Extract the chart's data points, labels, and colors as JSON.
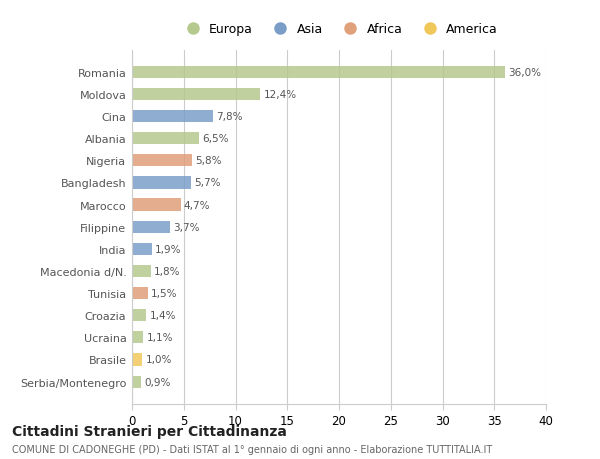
{
  "countries": [
    "Romania",
    "Moldova",
    "Cina",
    "Albania",
    "Nigeria",
    "Bangladesh",
    "Marocco",
    "Filippine",
    "India",
    "Macedonia d/N.",
    "Tunisia",
    "Croazia",
    "Ucraina",
    "Brasile",
    "Serbia/Montenegro"
  ],
  "values": [
    36.0,
    12.4,
    7.8,
    6.5,
    5.8,
    5.7,
    4.7,
    3.7,
    1.9,
    1.8,
    1.5,
    1.4,
    1.1,
    1.0,
    0.9
  ],
  "labels": [
    "36,0%",
    "12,4%",
    "7,8%",
    "6,5%",
    "5,8%",
    "5,7%",
    "4,7%",
    "3,7%",
    "1,9%",
    "1,8%",
    "1,5%",
    "1,4%",
    "1,1%",
    "1,0%",
    "0,9%"
  ],
  "continents": [
    "Europa",
    "Europa",
    "Asia",
    "Europa",
    "Africa",
    "Asia",
    "Africa",
    "Asia",
    "Asia",
    "Europa",
    "Africa",
    "Europa",
    "Europa",
    "America",
    "Europa"
  ],
  "colors": {
    "Europa": "#b5c98e",
    "Asia": "#7b9ec9",
    "Africa": "#e0a07a",
    "America": "#f0c85a"
  },
  "legend_order": [
    "Europa",
    "Asia",
    "Africa",
    "America"
  ],
  "title": "Cittadini Stranieri per Cittadinanza",
  "subtitle": "COMUNE DI CADONEGHE (PD) - Dati ISTAT al 1° gennaio di ogni anno - Elaborazione TUTTITALIA.IT",
  "xlim": [
    0,
    40
  ],
  "xticks": [
    0,
    5,
    10,
    15,
    20,
    25,
    30,
    35,
    40
  ],
  "bg_color": "#ffffff",
  "plot_bg_color": "#ffffff"
}
